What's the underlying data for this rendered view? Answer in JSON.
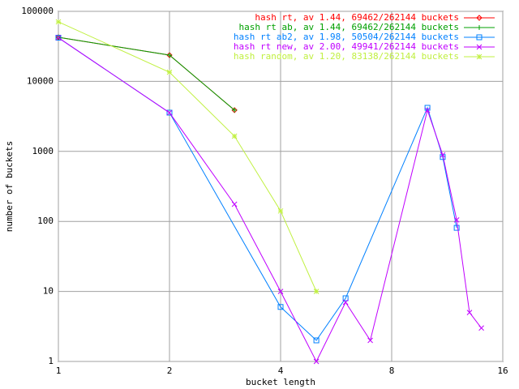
{
  "chart_data": {
    "type": "line",
    "xlabel": "bucket length",
    "ylabel": "number of buckets",
    "xscale": "log2",
    "yscale": "log10",
    "grid": true,
    "legend": "top-right",
    "xlim": [
      1,
      16
    ],
    "xticks": [
      1,
      2,
      4,
      8,
      16
    ],
    "ylim": [
      1,
      100000
    ],
    "yticks": [
      1,
      10,
      100,
      1000,
      10000,
      100000
    ],
    "series": [
      {
        "name": "hash rt, av 1.44, 69462/262144 buckets",
        "color": "#ff0000",
        "marker": "diamond",
        "x": [
          1,
          2,
          3
        ],
        "values": [
          42600,
          23700,
          3880
        ]
      },
      {
        "name": "hash rt ab, av 1.44, 69462/262144 buckets",
        "color": "#00a000",
        "marker": "plus",
        "x": [
          1,
          2,
          3
        ],
        "values": [
          42600,
          23700,
          3880
        ]
      },
      {
        "name": "hash rt ab2, av 1.98, 50504/262144 buckets",
        "color": "#0080ff",
        "marker": "square",
        "x": [
          1,
          2,
          4,
          5,
          6,
          10,
          11,
          12
        ],
        "values": [
          42000,
          3570,
          6,
          2,
          8,
          4200,
          830,
          81
        ]
      },
      {
        "name": "hash rt new, av 2.00, 49941/262144 buckets",
        "color": "#c000ff",
        "marker": "cross",
        "x": [
          1,
          2,
          3,
          4,
          5,
          6,
          7,
          10,
          11,
          12,
          13,
          14
        ],
        "values": [
          42000,
          3570,
          176,
          10,
          1,
          7,
          2,
          3880,
          890,
          105,
          5,
          3
        ]
      },
      {
        "name": "hash random, av 1.20, 83138/262144 buckets",
        "color": "#c0f040",
        "marker": "star",
        "x": [
          1,
          2,
          3,
          4,
          5
        ],
        "values": [
          70800,
          13500,
          1650,
          141,
          10
        ]
      }
    ]
  }
}
